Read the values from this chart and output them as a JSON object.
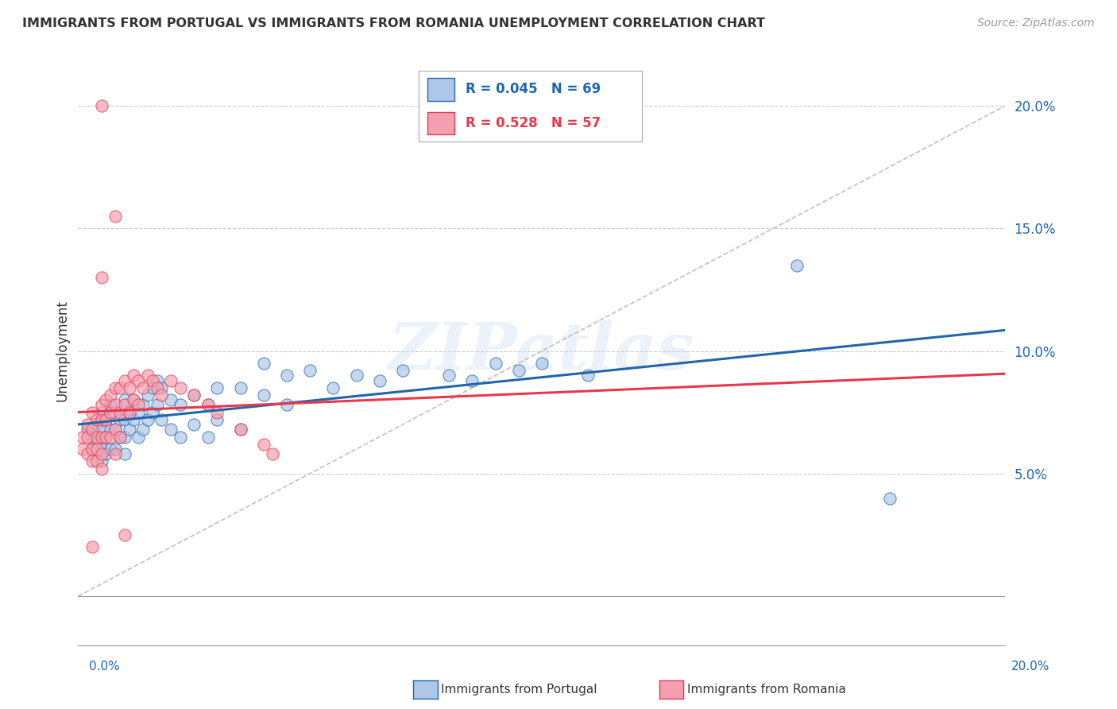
{
  "title": "IMMIGRANTS FROM PORTUGAL VS IMMIGRANTS FROM ROMANIA UNEMPLOYMENT CORRELATION CHART",
  "source": "Source: ZipAtlas.com",
  "ylabel": "Unemployment",
  "xlim": [
    0.0,
    0.2
  ],
  "ylim": [
    -0.02,
    0.22
  ],
  "yticks": [
    0.05,
    0.1,
    0.15,
    0.2
  ],
  "ytick_labels": [
    "5.0%",
    "10.0%",
    "15.0%",
    "20.0%"
  ],
  "xtick_left_label": "0.0%",
  "xtick_right_label": "20.0%",
  "legend_text_1": "R = 0.045   N = 69",
  "legend_text_2": "R = 0.528   N = 57",
  "color_portugal": "#aec6e8",
  "color_romania": "#f4a0b0",
  "color_trendline_portugal": "#2166ac",
  "color_trendline_romania": "#e8384d",
  "color_diagonal": "#c0c0c0",
  "watermark": "ZIPatlas",
  "portugal_points": [
    [
      0.002,
      0.068
    ],
    [
      0.003,
      0.065
    ],
    [
      0.003,
      0.06
    ],
    [
      0.004,
      0.07
    ],
    [
      0.004,
      0.063
    ],
    [
      0.005,
      0.075
    ],
    [
      0.005,
      0.068
    ],
    [
      0.005,
      0.06
    ],
    [
      0.005,
      0.055
    ],
    [
      0.006,
      0.072
    ],
    [
      0.006,
      0.065
    ],
    [
      0.006,
      0.058
    ],
    [
      0.007,
      0.078
    ],
    [
      0.007,
      0.068
    ],
    [
      0.007,
      0.06
    ],
    [
      0.008,
      0.075
    ],
    [
      0.008,
      0.068
    ],
    [
      0.008,
      0.06
    ],
    [
      0.009,
      0.072
    ],
    [
      0.009,
      0.065
    ],
    [
      0.01,
      0.08
    ],
    [
      0.01,
      0.072
    ],
    [
      0.01,
      0.065
    ],
    [
      0.01,
      0.058
    ],
    [
      0.011,
      0.075
    ],
    [
      0.011,
      0.068
    ],
    [
      0.012,
      0.08
    ],
    [
      0.012,
      0.072
    ],
    [
      0.013,
      0.075
    ],
    [
      0.013,
      0.065
    ],
    [
      0.014,
      0.078
    ],
    [
      0.014,
      0.068
    ],
    [
      0.015,
      0.082
    ],
    [
      0.015,
      0.072
    ],
    [
      0.016,
      0.085
    ],
    [
      0.016,
      0.075
    ],
    [
      0.017,
      0.088
    ],
    [
      0.017,
      0.078
    ],
    [
      0.018,
      0.085
    ],
    [
      0.018,
      0.072
    ],
    [
      0.02,
      0.08
    ],
    [
      0.02,
      0.068
    ],
    [
      0.022,
      0.078
    ],
    [
      0.022,
      0.065
    ],
    [
      0.025,
      0.082
    ],
    [
      0.025,
      0.07
    ],
    [
      0.028,
      0.078
    ],
    [
      0.028,
      0.065
    ],
    [
      0.03,
      0.085
    ],
    [
      0.03,
      0.072
    ],
    [
      0.035,
      0.085
    ],
    [
      0.035,
      0.068
    ],
    [
      0.04,
      0.095
    ],
    [
      0.04,
      0.082
    ],
    [
      0.045,
      0.09
    ],
    [
      0.045,
      0.078
    ],
    [
      0.05,
      0.092
    ],
    [
      0.055,
      0.085
    ],
    [
      0.06,
      0.09
    ],
    [
      0.065,
      0.088
    ],
    [
      0.07,
      0.092
    ],
    [
      0.08,
      0.09
    ],
    [
      0.085,
      0.088
    ],
    [
      0.09,
      0.095
    ],
    [
      0.095,
      0.092
    ],
    [
      0.1,
      0.095
    ],
    [
      0.11,
      0.09
    ],
    [
      0.155,
      0.135
    ],
    [
      0.175,
      0.04
    ]
  ],
  "romania_points": [
    [
      0.001,
      0.065
    ],
    [
      0.001,
      0.06
    ],
    [
      0.002,
      0.07
    ],
    [
      0.002,
      0.065
    ],
    [
      0.002,
      0.058
    ],
    [
      0.003,
      0.075
    ],
    [
      0.003,
      0.068
    ],
    [
      0.003,
      0.06
    ],
    [
      0.003,
      0.055
    ],
    [
      0.004,
      0.072
    ],
    [
      0.004,
      0.065
    ],
    [
      0.004,
      0.06
    ],
    [
      0.004,
      0.055
    ],
    [
      0.005,
      0.078
    ],
    [
      0.005,
      0.072
    ],
    [
      0.005,
      0.065
    ],
    [
      0.005,
      0.058
    ],
    [
      0.005,
      0.052
    ],
    [
      0.006,
      0.08
    ],
    [
      0.006,
      0.072
    ],
    [
      0.006,
      0.065
    ],
    [
      0.007,
      0.082
    ],
    [
      0.007,
      0.075
    ],
    [
      0.007,
      0.065
    ],
    [
      0.008,
      0.085
    ],
    [
      0.008,
      0.078
    ],
    [
      0.008,
      0.068
    ],
    [
      0.008,
      0.058
    ],
    [
      0.009,
      0.085
    ],
    [
      0.009,
      0.075
    ],
    [
      0.009,
      0.065
    ],
    [
      0.01,
      0.088
    ],
    [
      0.01,
      0.078
    ],
    [
      0.011,
      0.085
    ],
    [
      0.011,
      0.075
    ],
    [
      0.012,
      0.09
    ],
    [
      0.012,
      0.08
    ],
    [
      0.013,
      0.088
    ],
    [
      0.013,
      0.078
    ],
    [
      0.014,
      0.085
    ],
    [
      0.015,
      0.09
    ],
    [
      0.016,
      0.088
    ],
    [
      0.017,
      0.085
    ],
    [
      0.018,
      0.082
    ],
    [
      0.02,
      0.088
    ],
    [
      0.022,
      0.085
    ],
    [
      0.025,
      0.082
    ],
    [
      0.028,
      0.078
    ],
    [
      0.03,
      0.075
    ],
    [
      0.035,
      0.068
    ],
    [
      0.04,
      0.062
    ],
    [
      0.042,
      0.058
    ],
    [
      0.005,
      0.2
    ],
    [
      0.008,
      0.155
    ],
    [
      0.005,
      0.13
    ],
    [
      0.003,
      0.02
    ],
    [
      0.01,
      0.025
    ]
  ]
}
